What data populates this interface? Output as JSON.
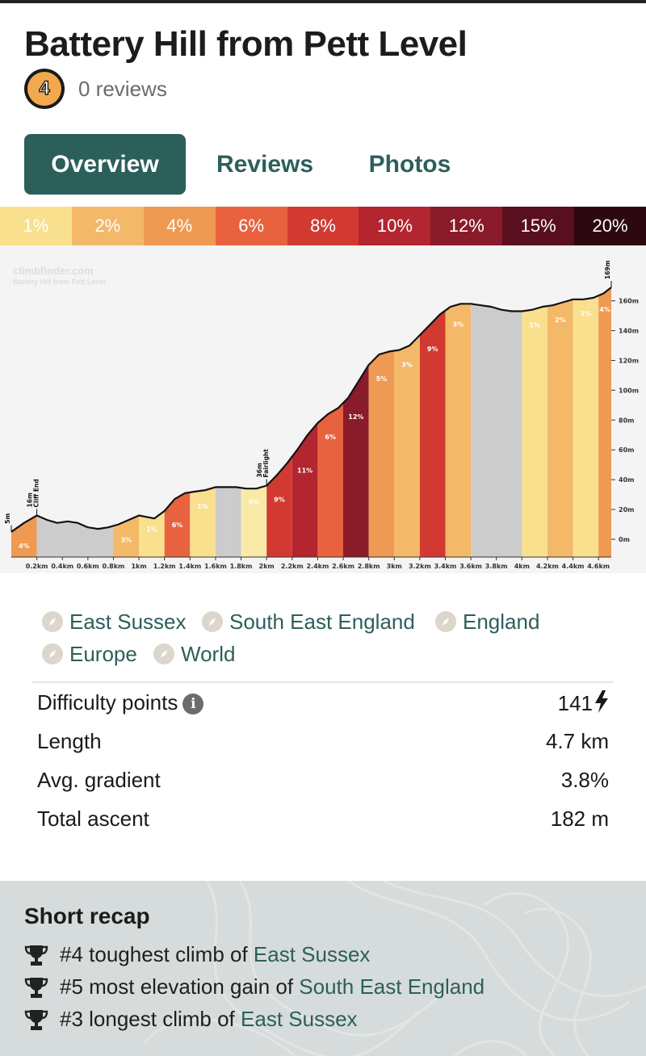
{
  "header": {
    "title": "Battery Hill from Pett Level",
    "rating_badge": "4",
    "reviews_count": "0 reviews"
  },
  "tabs": [
    {
      "label": "Overview",
      "active": true
    },
    {
      "label": "Reviews",
      "active": false
    },
    {
      "label": "Photos",
      "active": false
    }
  ],
  "gradient_legend": [
    {
      "label": "1%",
      "color": "#f8e08e",
      "text_color": "#ffffff"
    },
    {
      "label": "2%",
      "color": "#f3b968",
      "text_color": "#ffffff"
    },
    {
      "label": "4%",
      "color": "#ee9a52",
      "text_color": "#ffffff"
    },
    {
      "label": "6%",
      "color": "#e8623f",
      "text_color": "#ffffff"
    },
    {
      "label": "8%",
      "color": "#d23a31",
      "text_color": "#ffffff"
    },
    {
      "label": "10%",
      "color": "#b3252f",
      "text_color": "#ffffff"
    },
    {
      "label": "12%",
      "color": "#8a1b2a",
      "text_color": "#ffffff"
    },
    {
      "label": "15%",
      "color": "#5a0f1e",
      "text_color": "#ffffff"
    },
    {
      "label": "20%",
      "color": "#2e0810",
      "text_color": "#ffffff"
    }
  ],
  "chart_data": {
    "type": "area",
    "watermark": "climbfinder.com",
    "watermark_subtitle": "Battery Hill from Pett Level",
    "xlabel": "",
    "ylabel": "",
    "xlim": [
      0,
      4.7
    ],
    "ylim": [
      0,
      169
    ],
    "x_ticks": [
      "0.2km",
      "0.4km",
      "0.6km",
      "0.8km",
      "1km",
      "1.2km",
      "1.4km",
      "1.6km",
      "1.8km",
      "2km",
      "2.2km",
      "2.4km",
      "2.6km",
      "2.8km",
      "3km",
      "3.2km",
      "3.4km",
      "3.6km",
      "3.8km",
      "4km",
      "4.2km",
      "4.4km",
      "4.6km"
    ],
    "y_ticks": [
      "0m",
      "20m",
      "40m",
      "60m",
      "80m",
      "100m",
      "120m",
      "140m",
      "160m"
    ],
    "elevation_profile": {
      "x_km": [
        0,
        0.1,
        0.2,
        0.28,
        0.36,
        0.44,
        0.52,
        0.6,
        0.68,
        0.76,
        0.84,
        0.92,
        1.0,
        1.06,
        1.12,
        1.2,
        1.28,
        1.36,
        1.44,
        1.52,
        1.6,
        1.68,
        1.76,
        1.84,
        1.92,
        2.0,
        2.08,
        2.16,
        2.24,
        2.32,
        2.4,
        2.48,
        2.56,
        2.64,
        2.72,
        2.8,
        2.88,
        2.96,
        3.04,
        3.12,
        3.2,
        3.28,
        3.36,
        3.44,
        3.52,
        3.6,
        3.68,
        3.76,
        3.84,
        3.92,
        4.0,
        4.08,
        4.16,
        4.24,
        4.32,
        4.4,
        4.48,
        4.56,
        4.64,
        4.7
      ],
      "elevation_m": [
        5,
        11,
        16,
        13,
        11,
        12,
        11,
        8,
        7,
        8,
        10,
        13,
        16,
        15,
        14,
        19,
        27,
        31,
        32,
        33,
        35,
        35,
        35,
        34,
        34,
        36,
        43,
        51,
        60,
        70,
        78,
        84,
        88,
        95,
        106,
        117,
        124,
        126,
        127,
        130,
        137,
        144,
        151,
        156,
        158,
        158,
        157,
        156,
        154,
        153,
        153,
        154,
        156,
        157,
        159,
        161,
        161,
        162,
        165,
        169
      ]
    },
    "segments": [
      {
        "start_km": 0.0,
        "end_km": 0.2,
        "gradient": "4%",
        "color": "#ee9a52"
      },
      {
        "start_km": 0.2,
        "end_km": 0.8,
        "gradient": "",
        "color": "#cccccc"
      },
      {
        "start_km": 0.8,
        "end_km": 1.0,
        "gradient": "3%",
        "color": "#f3b968"
      },
      {
        "start_km": 1.0,
        "end_km": 1.2,
        "gradient": "1%",
        "color": "#f8e08e"
      },
      {
        "start_km": 1.2,
        "end_km": 1.4,
        "gradient": "6%",
        "color": "#e8623f"
      },
      {
        "start_km": 1.4,
        "end_km": 1.6,
        "gradient": "1%",
        "color": "#f8e08e"
      },
      {
        "start_km": 1.6,
        "end_km": 1.8,
        "gradient": "",
        "color": "#cccccc"
      },
      {
        "start_km": 1.8,
        "end_km": 2.0,
        "gradient": "0%",
        "color": "#faeaa8"
      },
      {
        "start_km": 2.0,
        "end_km": 2.2,
        "gradient": "9%",
        "color": "#d23a31"
      },
      {
        "start_km": 2.2,
        "end_km": 2.4,
        "gradient": "11%",
        "color": "#b3252f"
      },
      {
        "start_km": 2.4,
        "end_km": 2.6,
        "gradient": "6%",
        "color": "#e8623f"
      },
      {
        "start_km": 2.6,
        "end_km": 2.8,
        "gradient": "12%",
        "color": "#8a1b2a"
      },
      {
        "start_km": 2.8,
        "end_km": 3.0,
        "gradient": "5%",
        "color": "#ee9a52"
      },
      {
        "start_km": 3.0,
        "end_km": 3.2,
        "gradient": "3%",
        "color": "#f3b968"
      },
      {
        "start_km": 3.2,
        "end_km": 3.4,
        "gradient": "9%",
        "color": "#d23a31"
      },
      {
        "start_km": 3.4,
        "end_km": 3.6,
        "gradient": "3%",
        "color": "#f3b968"
      },
      {
        "start_km": 3.6,
        "end_km": 4.0,
        "gradient": "",
        "color": "#cccccc"
      },
      {
        "start_km": 4.0,
        "end_km": 4.2,
        "gradient": "1%",
        "color": "#f8e08e"
      },
      {
        "start_km": 4.2,
        "end_km": 4.4,
        "gradient": "2%",
        "color": "#f3b968"
      },
      {
        "start_km": 4.4,
        "end_km": 4.6,
        "gradient": "1%",
        "color": "#f8e08e"
      },
      {
        "start_km": 4.6,
        "end_km": 4.7,
        "gradient": "4%",
        "color": "#ee9a52"
      }
    ],
    "waypoints": [
      {
        "name": "",
        "elevation": "5m",
        "x_km": 0.0
      },
      {
        "name": "Cliff End",
        "elevation": "16m",
        "x_km": 0.2
      },
      {
        "name": "Fairlight",
        "elevation": "36m",
        "x_km": 2.0
      },
      {
        "name": "",
        "elevation": "169m",
        "x_km": 4.7
      }
    ]
  },
  "locations": [
    "East Sussex",
    "South East England",
    "England",
    "Europe",
    "World"
  ],
  "stats": [
    {
      "label": "Difficulty points",
      "value": "141",
      "has_info": true,
      "has_bolt": true
    },
    {
      "label": "Length",
      "value": "4.7 km"
    },
    {
      "label": "Avg. gradient",
      "value": "3.8%"
    },
    {
      "label": "Total ascent",
      "value": "182 m"
    }
  ],
  "recap": {
    "title": "Short recap",
    "items": [
      {
        "prefix": "#4 toughest climb of ",
        "link": "East Sussex"
      },
      {
        "prefix": "#5 most elevation gain of ",
        "link": "South East England"
      },
      {
        "prefix": "#3 longest climb of ",
        "link": "East Sussex"
      }
    ]
  }
}
